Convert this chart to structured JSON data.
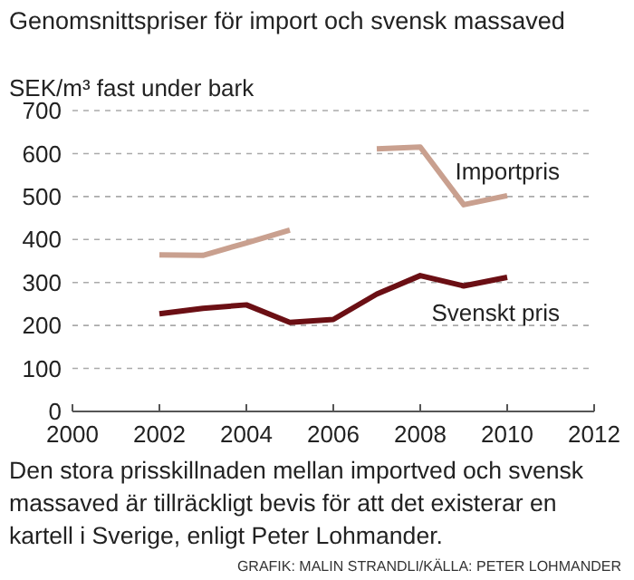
{
  "chart_data": {
    "type": "line",
    "title": "Genomsnittspriser för import och svensk massaved",
    "ylabel": "SEK/m³ fast under bark",
    "x": [
      2002,
      2003,
      2004,
      2005,
      2006,
      2007,
      2008,
      2009,
      2010
    ],
    "series": [
      {
        "name": "Importpris",
        "color": "#c9a08f",
        "values": [
          364,
          363,
          392,
          422,
          null,
          611,
          615,
          481,
          502
        ]
      },
      {
        "name": "Svenskt pris",
        "color": "#6b0f14",
        "values": [
          227,
          240,
          248,
          207,
          214,
          273,
          316,
          292,
          312
        ]
      }
    ],
    "xlim": [
      2000,
      2012
    ],
    "xticks": [
      2000,
      2002,
      2004,
      2006,
      2008,
      2010,
      2012
    ],
    "ylim": [
      0,
      700
    ],
    "yticks": [
      0,
      100,
      200,
      300,
      400,
      500,
      600,
      700
    ],
    "grid": "y",
    "line_style": "solid",
    "marker": "none",
    "annotations": [
      "Den stora prisskillnaden mellan importved och svensk massaved är tillräckligt bevis för att det existerar en kartell i Sverige, enligt Peter Lohmander.",
      "GRAFIK: MALIN STRANDLI/KÄLLA: PETER LOHMANDER"
    ]
  }
}
